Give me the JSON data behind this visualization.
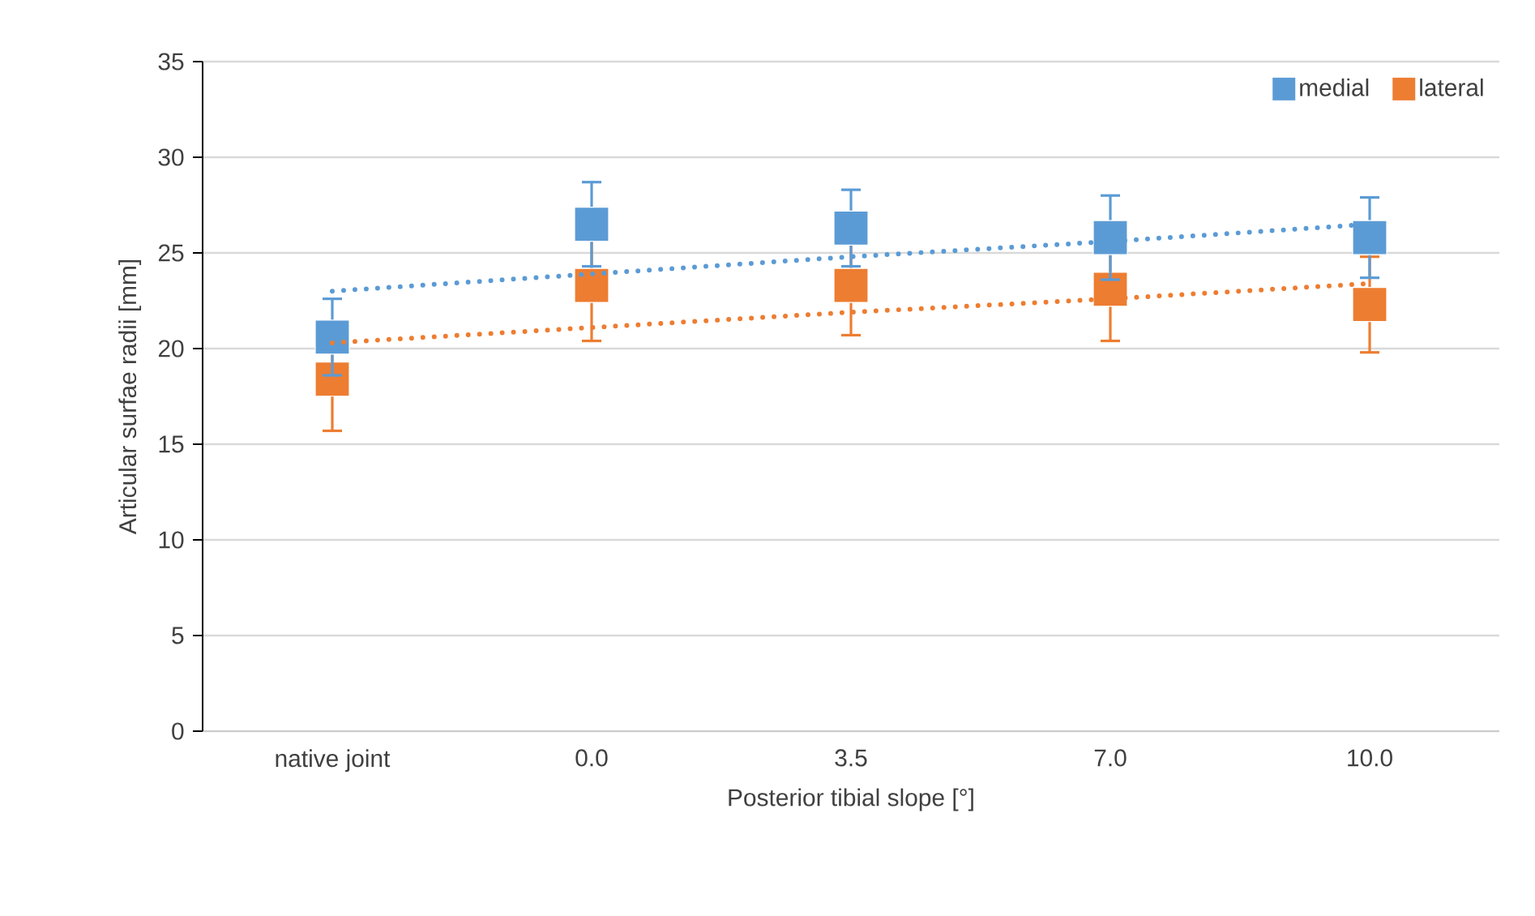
{
  "chart_data": {
    "type": "scatter",
    "xlabel": "Posterior tibial slope [°]",
    "ylabel": "Articular surfae radii [mm]",
    "categories": [
      "native joint",
      "0.0",
      "3.5",
      "7.0",
      "10.0"
    ],
    "ylim": [
      0,
      35
    ],
    "yticks": [
      0,
      5,
      10,
      15,
      20,
      25,
      30,
      35
    ],
    "grid": "y",
    "legend": "top right",
    "marker": "square",
    "series": [
      {
        "name": "lateral",
        "color": "#ed7d31",
        "values": [
          18.4,
          23.3,
          23.3,
          23.1,
          22.3
        ],
        "errors": [
          2.7,
          2.9,
          2.6,
          2.7,
          2.5
        ]
      },
      {
        "name": "medial",
        "color": "#5b9bd5",
        "values": [
          20.6,
          26.5,
          26.3,
          25.8,
          25.8
        ],
        "errors": [
          2.0,
          2.2,
          2.0,
          2.2,
          2.1
        ]
      },
      {
        "type": "line",
        "line_style": "dotted",
        "marker": "none",
        "color": "#5b9bd5",
        "values": [
          23.0,
          23.9,
          24.8,
          25.6,
          26.5
        ]
      },
      {
        "type": "line",
        "line_style": "dotted",
        "marker": "none",
        "color": "#ed7d31",
        "values": [
          20.3,
          21.1,
          21.9,
          22.6,
          23.4
        ]
      }
    ]
  }
}
